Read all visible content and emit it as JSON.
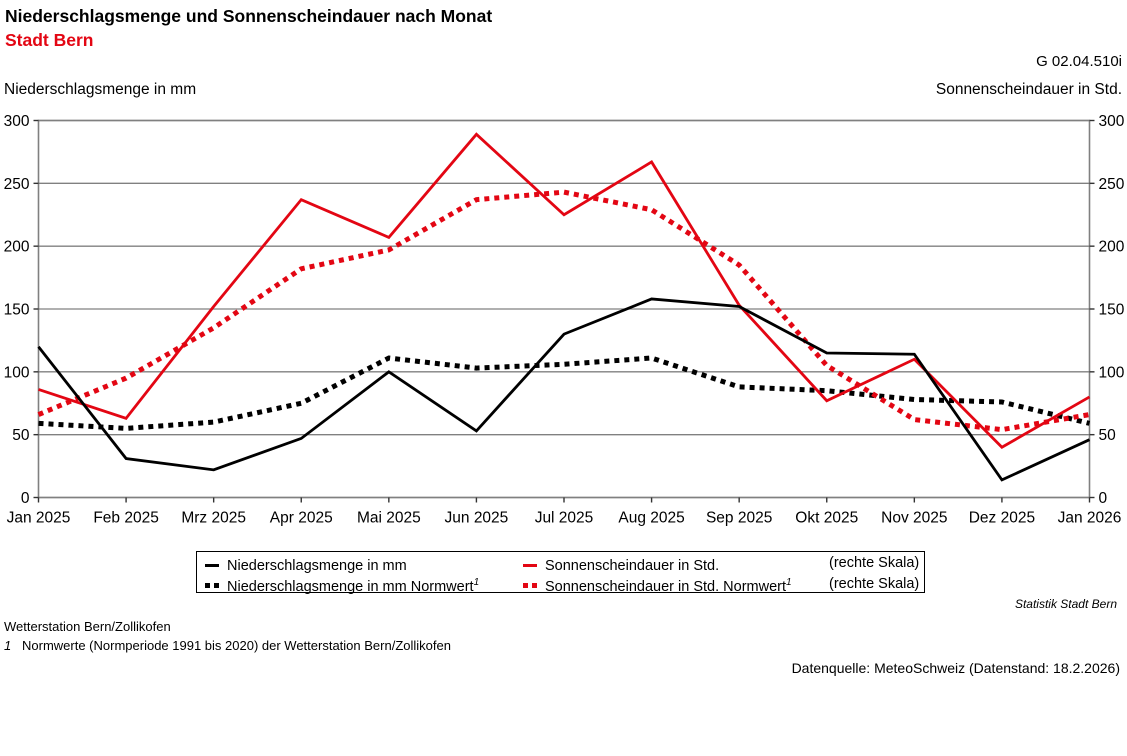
{
  "header": {
    "title": "Niederschlagsmenge und Sonnenscheindauer nach Monat",
    "subtitle": "Stadt Bern",
    "figure_id": "G 02.04.510i"
  },
  "chart_data": {
    "type": "line",
    "title": "Niederschlagsmenge und Sonnenscheindauer nach Monat, Stadt Bern",
    "left_axis_label": "Niederschlagsmenge in mm",
    "right_axis_label": "Sonnenscheindauer in Std.",
    "categories": [
      "Jan 2025",
      "Feb 2025",
      "Mrz 2025",
      "Apr 2025",
      "Mai 2025",
      "Jun 2025",
      "Jul 2025",
      "Aug 2025",
      "Sep 2025",
      "Okt 2025",
      "Nov 2025",
      "Dez 2025",
      "Jan 2026"
    ],
    "ylim": [
      0,
      300
    ],
    "y_ticks": [
      0,
      50,
      100,
      150,
      200,
      250,
      300
    ],
    "grid": true,
    "grid_color": "#808080",
    "legend_position": "bottom",
    "series": [
      {
        "key": "niederschlag",
        "name": "Niederschlagsmenge in mm",
        "axis": "left",
        "color": "#000000",
        "line_style": "solid",
        "values": [
          120,
          31,
          22,
          47,
          100,
          53,
          130,
          158,
          152,
          115,
          114,
          14,
          46
        ]
      },
      {
        "key": "sonnenschein",
        "name": "Sonnenscheindauer in Std.",
        "axis": "right",
        "color": "#e30613",
        "line_style": "solid",
        "values": [
          86,
          63,
          152,
          237,
          207,
          289,
          225,
          267,
          153,
          77,
          110,
          40,
          80
        ]
      },
      {
        "key": "niederschlag-normwert",
        "name": "Niederschlagsmenge in mm Normwert",
        "axis": "left",
        "color": "#000000",
        "line_style": "dotted",
        "values": [
          59,
          55,
          60,
          75,
          111,
          103,
          106,
          111,
          88,
          85,
          78,
          76,
          59
        ]
      },
      {
        "key": "sonnenschein-normwert",
        "name": "Sonnenscheindauer in Std. Normwert",
        "axis": "right",
        "color": "#e30613",
        "line_style": "dotted",
        "values": [
          66,
          95,
          135,
          182,
          197,
          237,
          243,
          229,
          185,
          105,
          62,
          54,
          66
        ]
      }
    ]
  },
  "legend": {
    "rows": [
      {
        "left": {
          "label": "Niederschlagsmenge in mm",
          "sup": ""
        },
        "right": {
          "label": "Sonnenscheindauer in Std.",
          "sup": ""
        },
        "note": "(rechte Skala)"
      },
      {
        "left": {
          "label": "Niederschlagsmenge in mm Normwert",
          "sup": "1"
        },
        "right": {
          "label": "Sonnenscheindauer in Std. Normwert",
          "sup": "1"
        },
        "note": "(rechte Skala)"
      }
    ]
  },
  "footer": {
    "publisher": "Statistik Stadt Bern",
    "station": "Wetterstation Bern/Zollikofen",
    "footnote_marker": "1",
    "footnote_text": "Normwerte (Normperiode 1991 bis 2020) der Wetterstation Bern/Zollikofen",
    "source": "Datenquelle: MeteoSchweiz (Datenstand: 18.2.2026)"
  }
}
